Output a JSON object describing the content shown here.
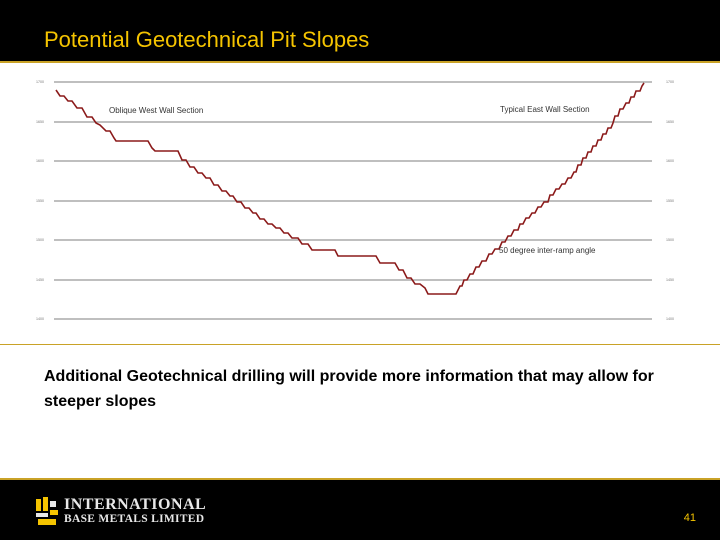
{
  "slide": {
    "title": "Potential Geotechnical Pit Slopes",
    "body_text": "Additional Geotechnical drilling will provide more information that may allow for steeper slopes",
    "page_number": "41"
  },
  "logo": {
    "line1": "INTERNATIONAL",
    "line2": "BASE METALS LIMITED"
  },
  "diagram": {
    "labels": {
      "west": "Oblique West Wall Section",
      "east": "Typical East Wall Section",
      "angle": "50 degree inter-ramp angle"
    },
    "elevation_ticks_left": [
      "1700",
      "1650",
      "1600",
      "1550",
      "1500",
      "1450",
      "1400"
    ],
    "elevation_ticks_right": [
      "1700",
      "1650",
      "1600",
      "1550",
      "1500",
      "1450",
      "1400"
    ]
  },
  "colors": {
    "header_bg": "#000000",
    "title_color": "#f5c400",
    "accent_rule": "#c9a227",
    "pit_profile": "#8b1a1a",
    "gridline": "#555555"
  }
}
